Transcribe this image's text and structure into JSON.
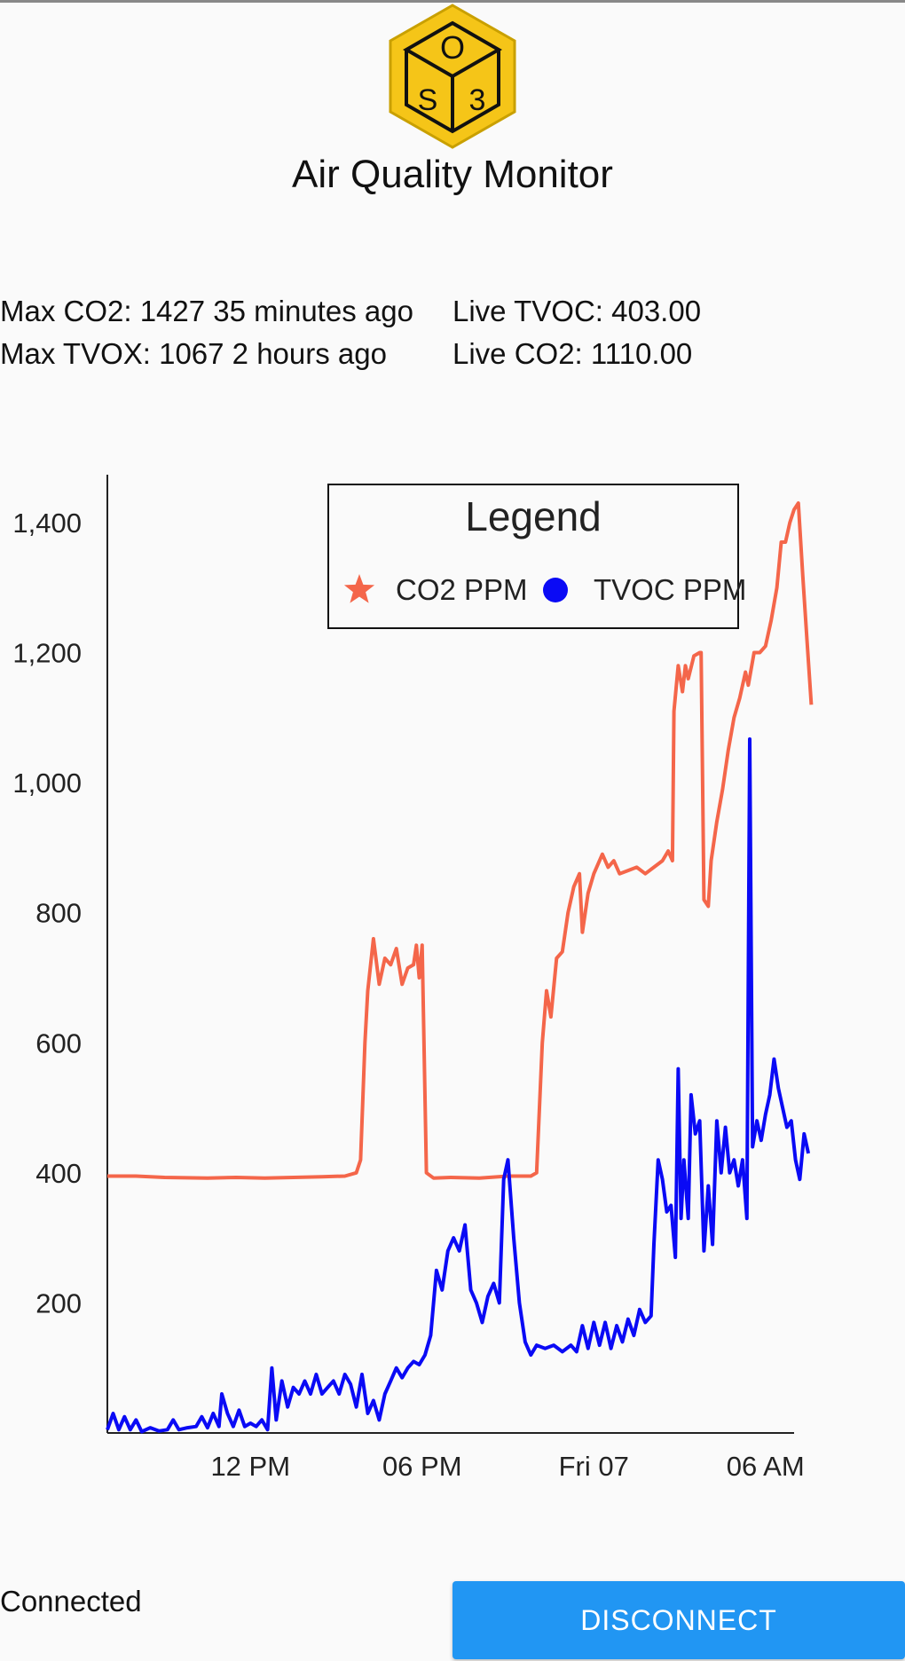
{
  "app": {
    "title": "Air Quality Monitor",
    "logo": {
      "top_letter": "O",
      "left_letter": "S",
      "right_letter": "3",
      "color": "#f5c518"
    }
  },
  "stats": {
    "max_co2": "Max CO2: 1427 35 minutes ago",
    "max_tvox": "Max TVOX: 1067 2 hours ago",
    "live_tvoc": "Live TVOC: 403.00",
    "live_co2": "Live CO2: 1110.00"
  },
  "chart_data": {
    "type": "line",
    "legend": {
      "title": "Legend",
      "position": "top-right"
    },
    "ylim": [
      0,
      1460
    ],
    "yticks": [
      200,
      400,
      600,
      800,
      1000,
      1200,
      1400
    ],
    "ytick_labels": [
      "200",
      "400",
      "600",
      "800",
      "1,000",
      "1,200",
      "1,400"
    ],
    "xlim": [
      7,
      31
    ],
    "xticks": [
      12,
      18,
      24,
      30
    ],
    "xtick_labels": [
      "12 PM",
      "06 PM",
      "Fri 07",
      "06 AM"
    ],
    "series": [
      {
        "name": "CO2 PPM",
        "color": "#f4664a",
        "marker": "star",
        "points": [
          [
            7.0,
            395
          ],
          [
            8.0,
            395
          ],
          [
            9.0,
            393
          ],
          [
            10.5,
            392
          ],
          [
            11.5,
            393
          ],
          [
            12.5,
            392
          ],
          [
            13.5,
            393
          ],
          [
            14.5,
            394
          ],
          [
            15.3,
            395
          ],
          [
            15.7,
            400
          ],
          [
            15.85,
            420
          ],
          [
            16.0,
            600
          ],
          [
            16.1,
            680
          ],
          [
            16.3,
            760
          ],
          [
            16.5,
            690
          ],
          [
            16.7,
            730
          ],
          [
            16.9,
            720
          ],
          [
            17.1,
            745
          ],
          [
            17.3,
            690
          ],
          [
            17.5,
            715
          ],
          [
            17.7,
            720
          ],
          [
            17.8,
            750
          ],
          [
            17.9,
            700
          ],
          [
            18.0,
            750
          ],
          [
            18.15,
            400
          ],
          [
            18.4,
            392
          ],
          [
            19.0,
            393
          ],
          [
            20.0,
            392
          ],
          [
            21.0,
            395
          ],
          [
            21.8,
            395
          ],
          [
            22.0,
            400
          ],
          [
            22.2,
            600
          ],
          [
            22.35,
            680
          ],
          [
            22.5,
            640
          ],
          [
            22.7,
            730
          ],
          [
            22.9,
            740
          ],
          [
            23.1,
            800
          ],
          [
            23.3,
            840
          ],
          [
            23.5,
            860
          ],
          [
            23.6,
            770
          ],
          [
            23.8,
            830
          ],
          [
            24.0,
            860
          ],
          [
            24.3,
            890
          ],
          [
            24.5,
            870
          ],
          [
            24.7,
            880
          ],
          [
            24.9,
            860
          ],
          [
            25.2,
            865
          ],
          [
            25.5,
            870
          ],
          [
            25.8,
            860
          ],
          [
            26.1,
            870
          ],
          [
            26.4,
            880
          ],
          [
            26.6,
            895
          ],
          [
            26.75,
            880
          ],
          [
            26.8,
            1110
          ],
          [
            26.95,
            1180
          ],
          [
            27.1,
            1140
          ],
          [
            27.2,
            1180
          ],
          [
            27.3,
            1160
          ],
          [
            27.5,
            1195
          ],
          [
            27.7,
            1200
          ],
          [
            27.75,
            1200
          ],
          [
            27.85,
            820
          ],
          [
            28.0,
            810
          ],
          [
            28.1,
            880
          ],
          [
            28.3,
            940
          ],
          [
            28.5,
            990
          ],
          [
            28.7,
            1050
          ],
          [
            28.9,
            1100
          ],
          [
            29.1,
            1130
          ],
          [
            29.3,
            1170
          ],
          [
            29.4,
            1150
          ],
          [
            29.6,
            1200
          ],
          [
            29.8,
            1200
          ],
          [
            30.0,
            1210
          ],
          [
            30.2,
            1250
          ],
          [
            30.4,
            1300
          ],
          [
            30.55,
            1370
          ],
          [
            30.7,
            1370
          ],
          [
            30.85,
            1400
          ],
          [
            31.0,
            1420
          ],
          [
            31.15,
            1430
          ],
          [
            31.3,
            1320
          ],
          [
            31.45,
            1220
          ],
          [
            31.6,
            1120
          ]
        ]
      },
      {
        "name": "TVOC PPM",
        "color": "#0a0af5",
        "marker": "circle",
        "points": [
          [
            7.0,
            5
          ],
          [
            7.2,
            30
          ],
          [
            7.4,
            5
          ],
          [
            7.6,
            25
          ],
          [
            7.8,
            5
          ],
          [
            8.0,
            20
          ],
          [
            8.2,
            2
          ],
          [
            8.5,
            8
          ],
          [
            8.8,
            3
          ],
          [
            9.1,
            5
          ],
          [
            9.3,
            20
          ],
          [
            9.5,
            5
          ],
          [
            9.8,
            8
          ],
          [
            10.1,
            10
          ],
          [
            10.3,
            25
          ],
          [
            10.5,
            8
          ],
          [
            10.7,
            30
          ],
          [
            10.9,
            10
          ],
          [
            11.0,
            60
          ],
          [
            11.2,
            30
          ],
          [
            11.4,
            10
          ],
          [
            11.6,
            35
          ],
          [
            11.8,
            10
          ],
          [
            12.0,
            15
          ],
          [
            12.2,
            10
          ],
          [
            12.4,
            20
          ],
          [
            12.6,
            5
          ],
          [
            12.75,
            100
          ],
          [
            12.9,
            20
          ],
          [
            13.1,
            80
          ],
          [
            13.3,
            40
          ],
          [
            13.5,
            70
          ],
          [
            13.7,
            60
          ],
          [
            13.9,
            80
          ],
          [
            14.1,
            60
          ],
          [
            14.3,
            90
          ],
          [
            14.5,
            60
          ],
          [
            14.7,
            70
          ],
          [
            14.9,
            80
          ],
          [
            15.1,
            60
          ],
          [
            15.3,
            90
          ],
          [
            15.5,
            75
          ],
          [
            15.7,
            40
          ],
          [
            15.9,
            90
          ],
          [
            16.1,
            30
          ],
          [
            16.3,
            50
          ],
          [
            16.5,
            20
          ],
          [
            16.7,
            60
          ],
          [
            16.9,
            80
          ],
          [
            17.1,
            100
          ],
          [
            17.3,
            85
          ],
          [
            17.5,
            100
          ],
          [
            17.7,
            110
          ],
          [
            17.9,
            105
          ],
          [
            18.1,
            120
          ],
          [
            18.3,
            150
          ],
          [
            18.5,
            250
          ],
          [
            18.7,
            220
          ],
          [
            18.9,
            280
          ],
          [
            19.1,
            300
          ],
          [
            19.3,
            280
          ],
          [
            19.5,
            320
          ],
          [
            19.7,
            220
          ],
          [
            19.9,
            200
          ],
          [
            20.1,
            170
          ],
          [
            20.3,
            210
          ],
          [
            20.5,
            230
          ],
          [
            20.7,
            200
          ],
          [
            20.85,
            390
          ],
          [
            21.0,
            420
          ],
          [
            21.2,
            300
          ],
          [
            21.4,
            200
          ],
          [
            21.6,
            140
          ],
          [
            21.8,
            120
          ],
          [
            22.0,
            135
          ],
          [
            22.3,
            130
          ],
          [
            22.6,
            135
          ],
          [
            22.9,
            125
          ],
          [
            23.2,
            135
          ],
          [
            23.4,
            125
          ],
          [
            23.6,
            165
          ],
          [
            23.8,
            130
          ],
          [
            24.0,
            170
          ],
          [
            24.2,
            135
          ],
          [
            24.4,
            170
          ],
          [
            24.6,
            130
          ],
          [
            24.8,
            165
          ],
          [
            25.0,
            140
          ],
          [
            25.2,
            175
          ],
          [
            25.4,
            150
          ],
          [
            25.6,
            190
          ],
          [
            25.8,
            170
          ],
          [
            26.0,
            180
          ],
          [
            26.1,
            290
          ],
          [
            26.25,
            420
          ],
          [
            26.4,
            390
          ],
          [
            26.55,
            340
          ],
          [
            26.7,
            350
          ],
          [
            26.85,
            270
          ],
          [
            26.95,
            560
          ],
          [
            27.05,
            330
          ],
          [
            27.15,
            420
          ],
          [
            27.3,
            330
          ],
          [
            27.4,
            520
          ],
          [
            27.55,
            460
          ],
          [
            27.7,
            480
          ],
          [
            27.85,
            280
          ],
          [
            28.0,
            380
          ],
          [
            28.15,
            290
          ],
          [
            28.3,
            480
          ],
          [
            28.45,
            400
          ],
          [
            28.6,
            470
          ],
          [
            28.75,
            400
          ],
          [
            28.9,
            420
          ],
          [
            29.05,
            380
          ],
          [
            29.2,
            420
          ],
          [
            29.35,
            330
          ],
          [
            29.45,
            1067
          ],
          [
            29.55,
            440
          ],
          [
            29.7,
            480
          ],
          [
            29.85,
            450
          ],
          [
            30.0,
            490
          ],
          [
            30.15,
            520
          ],
          [
            30.3,
            575
          ],
          [
            30.45,
            530
          ],
          [
            30.6,
            500
          ],
          [
            30.75,
            470
          ],
          [
            30.9,
            480
          ],
          [
            31.05,
            420
          ],
          [
            31.2,
            390
          ],
          [
            31.35,
            460
          ],
          [
            31.5,
            430
          ]
        ]
      }
    ]
  },
  "status": {
    "connection": "Connected"
  },
  "actions": {
    "disconnect_label": "DISCONNECT"
  }
}
